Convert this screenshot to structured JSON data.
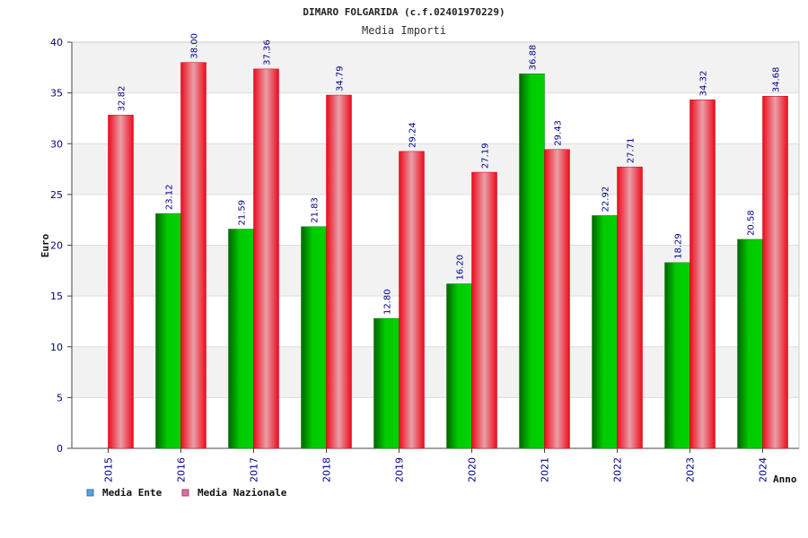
{
  "colors": {
    "ente": "#00b000",
    "nazionale": "#f01020",
    "legend_ente": "#5aa0e0",
    "legend_nazionale": "#e070a0",
    "band": "#f2f2f2",
    "plot_bg": "#ffffff"
  },
  "chart_data": {
    "type": "bar",
    "title": "DIMARO FOLGARIDA (c.f.02401970229)",
    "subtitle": "Media Importi",
    "xlabel": "Anno",
    "ylabel": "Euro",
    "ylim": [
      0,
      40
    ],
    "yticks": [
      0,
      5,
      10,
      15,
      20,
      25,
      30,
      35,
      40
    ],
    "grid": true,
    "legend_position": "bottom-left",
    "categories": [
      "2015",
      "2016",
      "2017",
      "2018",
      "2019",
      "2020",
      "2021",
      "2022",
      "2023",
      "2024"
    ],
    "series": [
      {
        "name": "Media Ente",
        "values": [
          null,
          23.12,
          21.59,
          21.83,
          12.8,
          16.2,
          36.88,
          22.92,
          18.29,
          20.58
        ],
        "labels": [
          null,
          "23.12",
          "21.59",
          "21.83",
          "12.80",
          "16.20",
          "36.88",
          "22.92",
          "18.29",
          "20.58"
        ]
      },
      {
        "name": "Media Nazionale",
        "values": [
          32.82,
          38.0,
          37.36,
          34.79,
          29.24,
          27.19,
          29.43,
          27.71,
          34.32,
          34.68
        ],
        "labels": [
          "32.82",
          "38.00",
          "37.36",
          "34.79",
          "29.24",
          "27.19",
          "29.43",
          "27.71",
          "34.32",
          "34.68"
        ]
      }
    ]
  }
}
